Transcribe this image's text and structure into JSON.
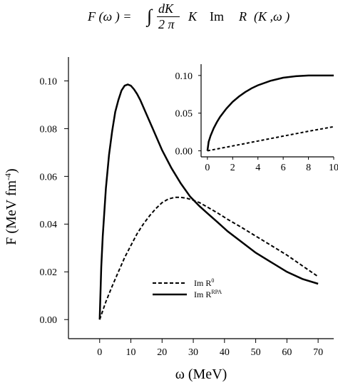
{
  "formula": {
    "lhs": "F (ω ) =",
    "integral": "∫",
    "frac_num": "dK",
    "frac_den": "2 π",
    "k": "K",
    "im": "Im",
    "r": "R",
    "args": "(K ,ω )"
  },
  "chart_data": [
    {
      "type": "line",
      "title": "",
      "xlabel": "ω (MeV)",
      "ylabel": "F (MeV fm",
      "ylabel_sup": "-4",
      "ylabel_close": ")",
      "xlim": [
        -10,
        75
      ],
      "ylim": [
        -0.008,
        0.11
      ],
      "xticks": [
        0,
        10,
        20,
        30,
        40,
        50,
        60,
        70
      ],
      "xtick_labels": [
        "0",
        "10",
        "20",
        "30",
        "40",
        "50",
        "60",
        "70"
      ],
      "yticks": [
        0.0,
        0.02,
        0.04,
        0.06,
        0.08,
        0.1
      ],
      "ytick_labels": [
        "0.00",
        "0.02",
        "0.04",
        "0.06",
        "0.08",
        "0.10"
      ],
      "grid": false,
      "legend_position": "lower-center",
      "series": [
        {
          "key": "rpa",
          "legend_text": "Im R",
          "legend_sup": "RPA",
          "style": "solid",
          "color": "#000000",
          "x": [
            0,
            0.5,
            1,
            2,
            3,
            4,
            5,
            6,
            7,
            8,
            9,
            10,
            11,
            12,
            13,
            15,
            17,
            20,
            23,
            26,
            29,
            32,
            35,
            38,
            41,
            45,
            50,
            55,
            60,
            65,
            70
          ],
          "y": [
            0.0,
            0.022,
            0.035,
            0.055,
            0.069,
            0.079,
            0.087,
            0.092,
            0.096,
            0.098,
            0.0985,
            0.098,
            0.0965,
            0.0945,
            0.092,
            0.086,
            0.08,
            0.071,
            0.0635,
            0.057,
            0.0515,
            0.0475,
            0.044,
            0.0405,
            0.037,
            0.033,
            0.028,
            0.024,
            0.02,
            0.017,
            0.015
          ]
        },
        {
          "key": "bare",
          "legend_text": "Im R",
          "legend_sup": "0",
          "style": "dashed",
          "color": "#000000",
          "x": [
            0,
            2,
            4,
            6,
            8,
            10,
            12,
            14,
            16,
            18,
            20,
            22,
            24,
            26,
            28,
            30,
            32,
            35,
            38,
            41,
            45,
            50,
            55,
            60,
            65,
            70
          ],
          "y": [
            0.0,
            0.0075,
            0.014,
            0.02,
            0.026,
            0.031,
            0.036,
            0.04,
            0.0435,
            0.0465,
            0.049,
            0.0505,
            0.0512,
            0.0512,
            0.0508,
            0.05,
            0.049,
            0.0468,
            0.0445,
            0.042,
            0.039,
            0.035,
            0.031,
            0.027,
            0.0225,
            0.018
          ]
        }
      ]
    },
    {
      "type": "line",
      "title": "",
      "xlabel": "",
      "ylabel": "",
      "xlim": [
        -0.5,
        10
      ],
      "ylim": [
        -0.008,
        0.115
      ],
      "xticks": [
        0,
        2,
        4,
        6,
        8,
        10
      ],
      "xtick_labels": [
        "0",
        "2",
        "4",
        "6",
        "8",
        "10"
      ],
      "yticks": [
        0.0,
        0.05,
        0.1
      ],
      "ytick_labels": [
        "0.00",
        "0.05",
        "0.10"
      ],
      "grid": false,
      "series": [
        {
          "key": "rpa",
          "style": "solid",
          "color": "#000000",
          "x": [
            0,
            0.1,
            0.25,
            0.5,
            0.75,
            1,
            1.5,
            2,
            2.5,
            3,
            3.5,
            4,
            5,
            6,
            7,
            8,
            9,
            10
          ],
          "y": [
            0.0,
            0.012,
            0.02,
            0.03,
            0.038,
            0.045,
            0.056,
            0.065,
            0.072,
            0.078,
            0.083,
            0.087,
            0.093,
            0.097,
            0.099,
            0.1,
            0.1,
            0.1
          ]
        },
        {
          "key": "bare",
          "style": "dashed",
          "color": "#000000",
          "x": [
            0,
            2,
            4,
            6,
            8,
            10
          ],
          "y": [
            0.0,
            0.0065,
            0.013,
            0.0195,
            0.026,
            0.032
          ]
        }
      ]
    }
  ]
}
